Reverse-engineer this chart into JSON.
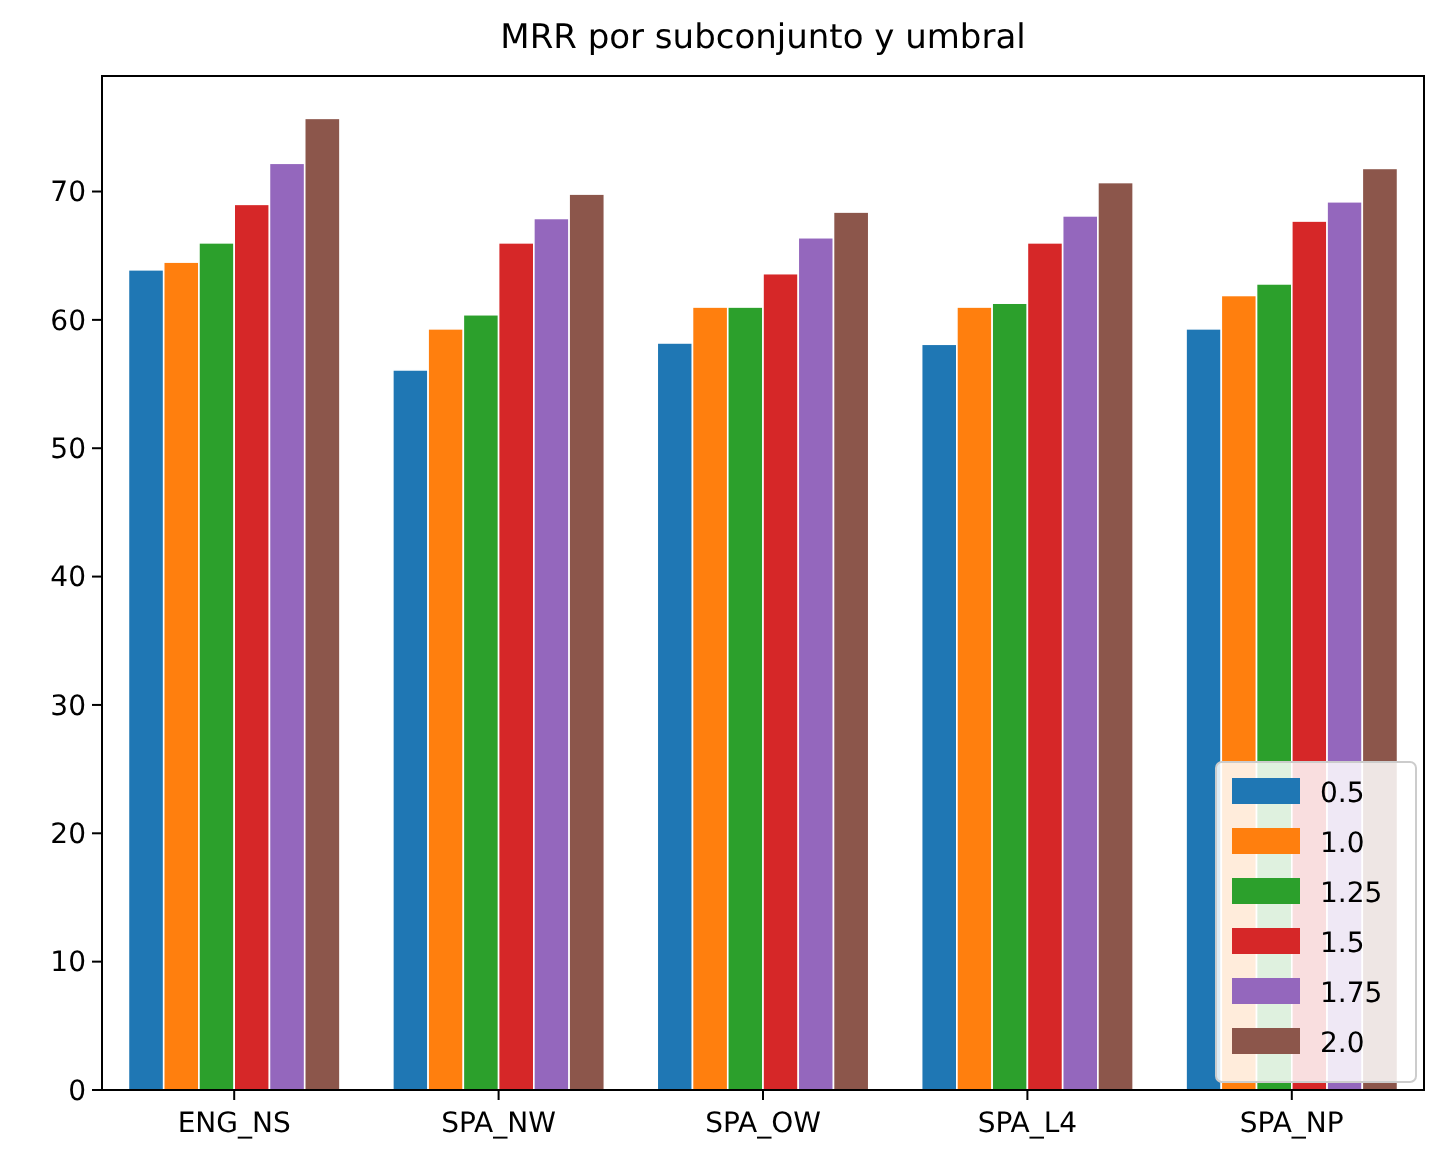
{
  "chart_data": {
    "type": "bar",
    "title": "MRR por subconjunto y umbral",
    "categories": [
      "ENG_NS",
      "SPA_NW",
      "SPA_OW",
      "SPA_L4",
      "SPA_NP"
    ],
    "series": [
      {
        "name": "0.5",
        "color": "#1f77b4",
        "values": [
          63.9,
          56.1,
          58.2,
          58.1,
          59.3
        ]
      },
      {
        "name": "1.0",
        "color": "#ff7f0e",
        "values": [
          64.5,
          59.3,
          61.0,
          61.0,
          61.9
        ]
      },
      {
        "name": "1.25",
        "color": "#2ca02c",
        "values": [
          66.0,
          60.4,
          61.0,
          61.3,
          62.8
        ]
      },
      {
        "name": "1.5",
        "color": "#d62728",
        "values": [
          69.0,
          66.0,
          63.6,
          66.0,
          67.7
        ]
      },
      {
        "name": "1.75",
        "color": "#9467bd",
        "values": [
          72.2,
          67.9,
          66.4,
          68.1,
          69.2
        ]
      },
      {
        "name": "2.0",
        "color": "#8c564b",
        "values": [
          75.7,
          69.8,
          68.4,
          70.7,
          71.8
        ]
      }
    ],
    "ylim": [
      0,
      79
    ],
    "yticks": [
      0,
      10,
      20,
      30,
      40,
      50,
      60,
      70
    ],
    "grid": false,
    "legend": "bottom right"
  }
}
